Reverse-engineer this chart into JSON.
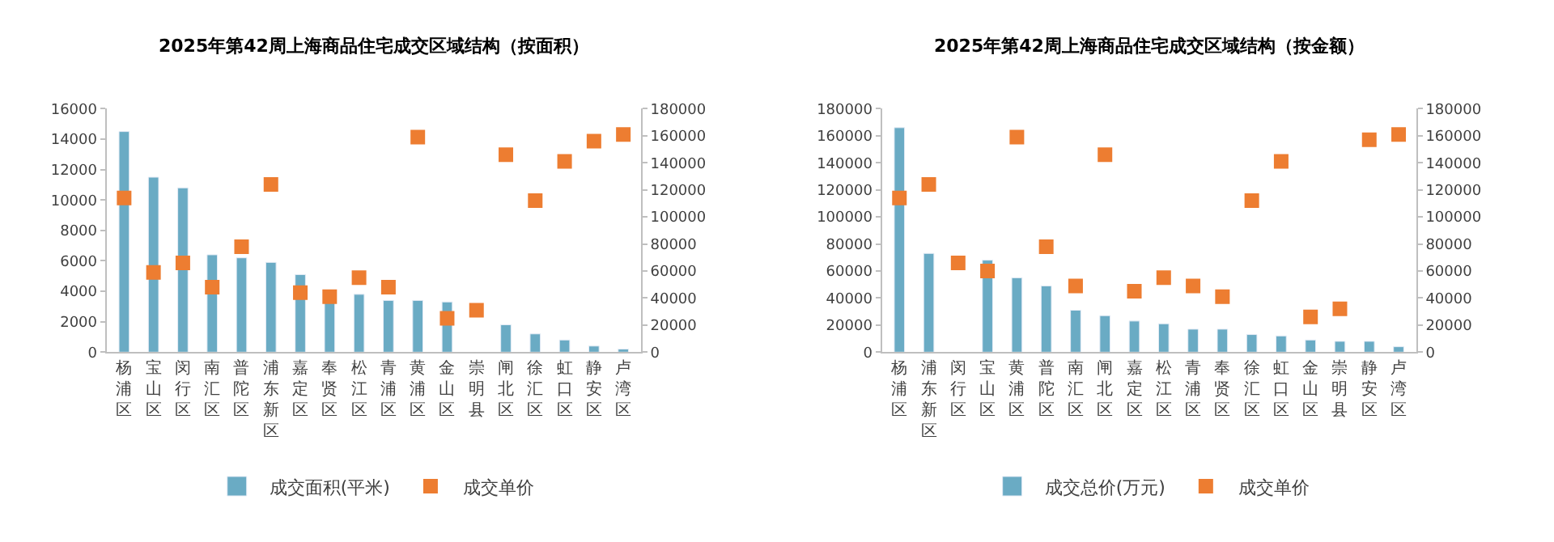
{
  "chart_data": [
    {
      "type": "bar",
      "title": "2025年第42周上海商品住宅成交区域结构（按面积）",
      "categories": [
        "杨浦区",
        "宝山区",
        "闵行区",
        "南汇区",
        "普陀区",
        "浦东新区",
        "嘉定区",
        "奉贤区",
        "松江区",
        "青浦区",
        "黄浦区",
        "金山区",
        "崇明县",
        "闸北区",
        "徐汇区",
        "虹口区",
        "静安区",
        "卢湾区"
      ],
      "series": [
        {
          "name": "成交面积(平米)",
          "color": "#6aabc4",
          "values": [
            14500,
            11500,
            10800,
            6400,
            6200,
            5900,
            5100,
            3500,
            3800,
            3400,
            3400,
            3300,
            null,
            1800,
            1200,
            800,
            400,
            200
          ]
        },
        {
          "name": "成交单价",
          "type": "scatter",
          "axis": "y2",
          "color": "#ed7d31",
          "values": [
            114000,
            59000,
            66000,
            48000,
            78000,
            124000,
            44000,
            41000,
            55000,
            48000,
            159000,
            25000,
            31000,
            146000,
            112000,
            141000,
            156000,
            161000
          ]
        }
      ],
      "ylim": [
        0,
        16000
      ],
      "yticks": [
        0,
        2000,
        4000,
        6000,
        8000,
        10000,
        12000,
        14000,
        16000
      ],
      "y2lim": [
        0,
        180000
      ],
      "y2ticks": [
        0,
        20000,
        40000,
        60000,
        80000,
        100000,
        120000,
        140000,
        160000,
        180000
      ],
      "legend": "bottom",
      "marker": "square"
    },
    {
      "type": "bar",
      "title": "2025年第42周上海商品住宅成交区域结构（按金额）",
      "categories": [
        "杨浦区",
        "浦东新区",
        "闵行区",
        "宝山区",
        "黄浦区",
        "普陀区",
        "南汇区",
        "闸北区",
        "嘉定区",
        "松江区",
        "青浦区",
        "奉贤区",
        "徐汇区",
        "虹口区",
        "金山区",
        "崇明县",
        "静安区",
        "卢湾区"
      ],
      "series": [
        {
          "name": "成交总价(万元)",
          "color": "#6aabc4",
          "values": [
            166000,
            73000,
            null,
            68000,
            55000,
            49000,
            31000,
            27000,
            23000,
            21000,
            17000,
            17000,
            13000,
            12000,
            9000,
            8000,
            8000,
            4000
          ]
        },
        {
          "name": "成交单价",
          "type": "scatter",
          "axis": "y2",
          "color": "#ed7d31",
          "values": [
            114000,
            124000,
            66000,
            60000,
            159000,
            78000,
            49000,
            146000,
            45000,
            55000,
            49000,
            41000,
            112000,
            141000,
            26000,
            32000,
            157000,
            161000
          ]
        }
      ],
      "ylim": [
        0,
        180000
      ],
      "yticks": [
        0,
        20000,
        40000,
        60000,
        80000,
        100000,
        120000,
        140000,
        160000,
        180000
      ],
      "y2lim": [
        0,
        180000
      ],
      "y2ticks": [
        0,
        20000,
        40000,
        60000,
        80000,
        100000,
        120000,
        140000,
        160000,
        180000
      ],
      "legend": "bottom",
      "marker": "square"
    }
  ]
}
